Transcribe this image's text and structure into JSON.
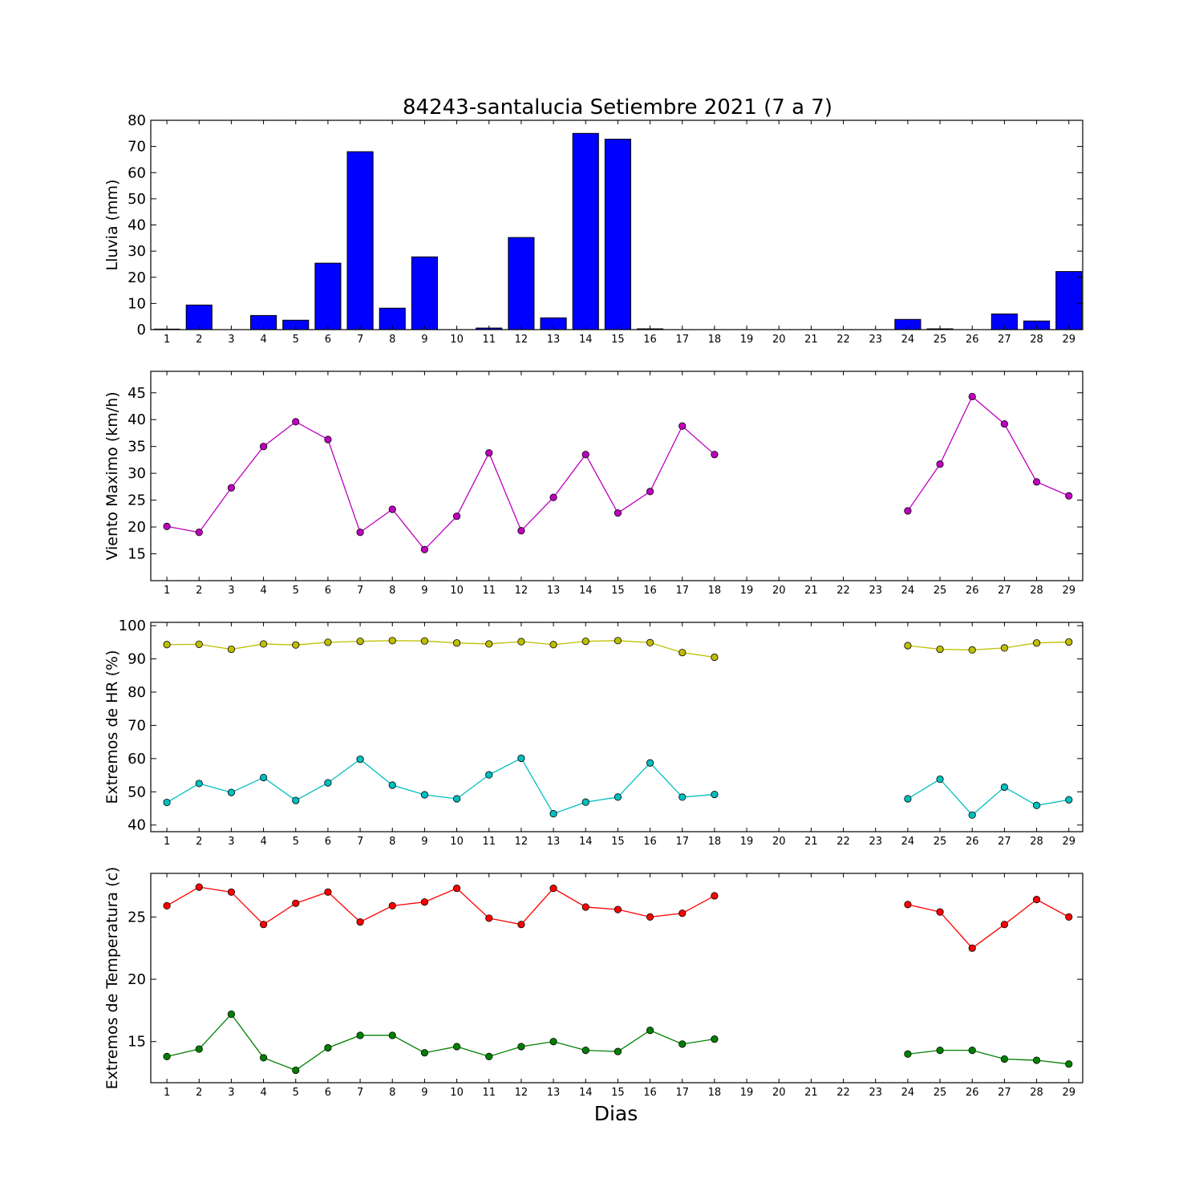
{
  "title": "84243-santalucia Setiembre 2021  (7 a 7)",
  "xlabel": "Dias",
  "colors": {
    "rain_bar": "#0000ff",
    "wind": "#bf00bf",
    "hr_max": "#bfbf00",
    "hr_min": "#00bfbf",
    "temp_max": "#ff0000",
    "temp_min": "#008000"
  },
  "chart_data": [
    {
      "type": "bar",
      "ylabel": "Lluvia (mm)",
      "categories": [
        "1",
        "2",
        "3",
        "4",
        "5",
        "6",
        "7",
        "8",
        "9",
        "10",
        "11",
        "12",
        "13",
        "14",
        "15",
        "16",
        "17",
        "18",
        "19",
        "20",
        "21",
        "22",
        "23",
        "24",
        "25",
        "26",
        "27",
        "28",
        "29"
      ],
      "values": [
        0.2,
        9.4,
        0,
        5.4,
        3.6,
        25.4,
        68.0,
        8.2,
        27.8,
        0,
        0.6,
        35.2,
        4.5,
        75.0,
        72.8,
        0.3,
        0,
        0,
        0,
        0,
        0,
        0,
        0,
        3.9,
        0.3,
        0,
        6.0,
        3.3,
        22.2
      ],
      "ylim": [
        0,
        80
      ],
      "yticks": [
        0,
        10,
        20,
        30,
        40,
        50,
        60,
        70,
        80
      ]
    },
    {
      "type": "line",
      "ylabel": "Viento Maximo (km/h)",
      "categories": [
        "1",
        "2",
        "3",
        "4",
        "5",
        "6",
        "7",
        "8",
        "9",
        "10",
        "11",
        "12",
        "13",
        "14",
        "15",
        "16",
        "17",
        "18",
        "19",
        "20",
        "21",
        "22",
        "23",
        "24",
        "25",
        "26",
        "27",
        "28",
        "29"
      ],
      "series": [
        {
          "values": [
            20.1,
            19.0,
            27.3,
            35.0,
            39.6,
            36.3,
            19.0,
            23.3,
            15.8,
            22.0,
            33.8,
            19.3,
            25.5,
            33.5,
            22.6,
            26.6,
            38.8,
            33.5,
            null,
            null,
            null,
            null,
            null,
            23.0,
            31.7,
            44.3,
            39.2,
            28.4,
            25.8
          ]
        }
      ],
      "ylim": [
        10,
        49
      ],
      "yticks": [
        15,
        20,
        25,
        30,
        35,
        40,
        45
      ]
    },
    {
      "type": "line",
      "ylabel": "Extremos de HR (%)",
      "categories": [
        "1",
        "2",
        "3",
        "4",
        "5",
        "6",
        "7",
        "8",
        "9",
        "10",
        "11",
        "12",
        "13",
        "14",
        "15",
        "16",
        "17",
        "18",
        "19",
        "20",
        "21",
        "22",
        "23",
        "24",
        "25",
        "26",
        "27",
        "28",
        "29"
      ],
      "series": [
        {
          "values": [
            94.3,
            94.4,
            92.9,
            94.5,
            94.2,
            95.0,
            95.3,
            95.5,
            95.4,
            94.8,
            94.5,
            95.2,
            94.3,
            95.3,
            95.5,
            94.9,
            91.9,
            90.5,
            null,
            null,
            null,
            null,
            null,
            94.0,
            92.9,
            92.7,
            93.3,
            94.8,
            95.1
          ]
        },
        {
          "values": [
            46.8,
            52.5,
            49.8,
            54.3,
            47.4,
            52.7,
            59.8,
            52.0,
            49.1,
            47.9,
            55.1,
            60.1,
            43.4,
            46.9,
            48.4,
            58.7,
            48.4,
            49.2,
            null,
            null,
            null,
            null,
            null,
            47.9,
            53.8,
            43.0,
            51.4,
            45.9,
            47.6
          ]
        }
      ],
      "ylim": [
        38,
        101
      ],
      "yticks": [
        40,
        50,
        60,
        70,
        80,
        90,
        100
      ]
    },
    {
      "type": "line",
      "ylabel": "Extremos de Temperatura (c)",
      "categories": [
        "1",
        "2",
        "3",
        "4",
        "5",
        "6",
        "7",
        "8",
        "9",
        "10",
        "11",
        "12",
        "13",
        "14",
        "15",
        "16",
        "17",
        "18",
        "19",
        "20",
        "21",
        "22",
        "23",
        "24",
        "25",
        "26",
        "27",
        "28",
        "29"
      ],
      "series": [
        {
          "values": [
            25.9,
            27.4,
            27.0,
            24.4,
            26.1,
            27.0,
            24.6,
            25.9,
            26.2,
            27.3,
            24.9,
            24.4,
            27.3,
            25.8,
            25.6,
            25.0,
            25.3,
            26.7,
            null,
            null,
            null,
            null,
            null,
            26.0,
            25.4,
            22.5,
            24.4,
            26.4,
            25.0
          ]
        },
        {
          "values": [
            13.8,
            14.4,
            17.2,
            13.7,
            12.7,
            14.5,
            15.5,
            15.5,
            14.1,
            14.6,
            13.8,
            14.6,
            15.0,
            14.3,
            14.2,
            15.9,
            14.8,
            15.2,
            null,
            null,
            null,
            null,
            null,
            14.0,
            14.3,
            14.3,
            13.6,
            13.5,
            13.2
          ]
        }
      ],
      "ylim": [
        11.7,
        28.5
      ],
      "yticks": [
        15,
        20,
        25
      ]
    }
  ]
}
